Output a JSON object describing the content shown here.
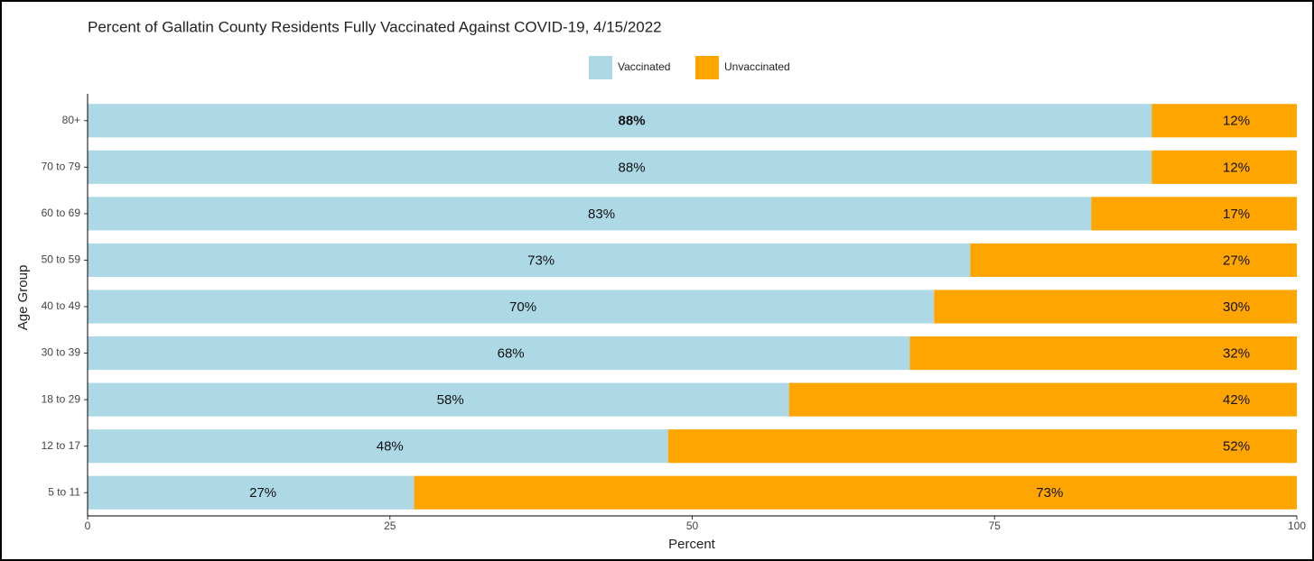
{
  "chart_data": {
    "type": "stacked-barh",
    "title": "Percent of Gallatin County Residents Fully Vaccinated Against COVID-19, 4/15/2022",
    "x_label": "Percent",
    "y_label": "Age Group",
    "categories": [
      "80+",
      "70 to 79",
      "60 to 69",
      "50 to 59",
      "40 to 49",
      "30 to 39",
      "18 to 29",
      "12 to 17",
      "5 to 11"
    ],
    "series": [
      {
        "name": "Vaccinated",
        "color": "#add8e6",
        "values": [
          88,
          88,
          83,
          73,
          70,
          68,
          58,
          48,
          27
        ],
        "value_labels": [
          "88%",
          "88%",
          "83%",
          "73%",
          "70%",
          "68%",
          "58%",
          "48%",
          "27%"
        ]
      },
      {
        "name": "Unvaccinated",
        "color": "#ffa500",
        "values": [
          12,
          12,
          17,
          27,
          30,
          32,
          42,
          52,
          73
        ],
        "value_labels": [
          "12%",
          "12%",
          "17%",
          "27%",
          "30%",
          "32%",
          "42%",
          "52%",
          "73%"
        ]
      }
    ],
    "xlim": [
      0,
      100
    ],
    "xticks": [
      0,
      25,
      50,
      75,
      100
    ],
    "legend": "top"
  }
}
